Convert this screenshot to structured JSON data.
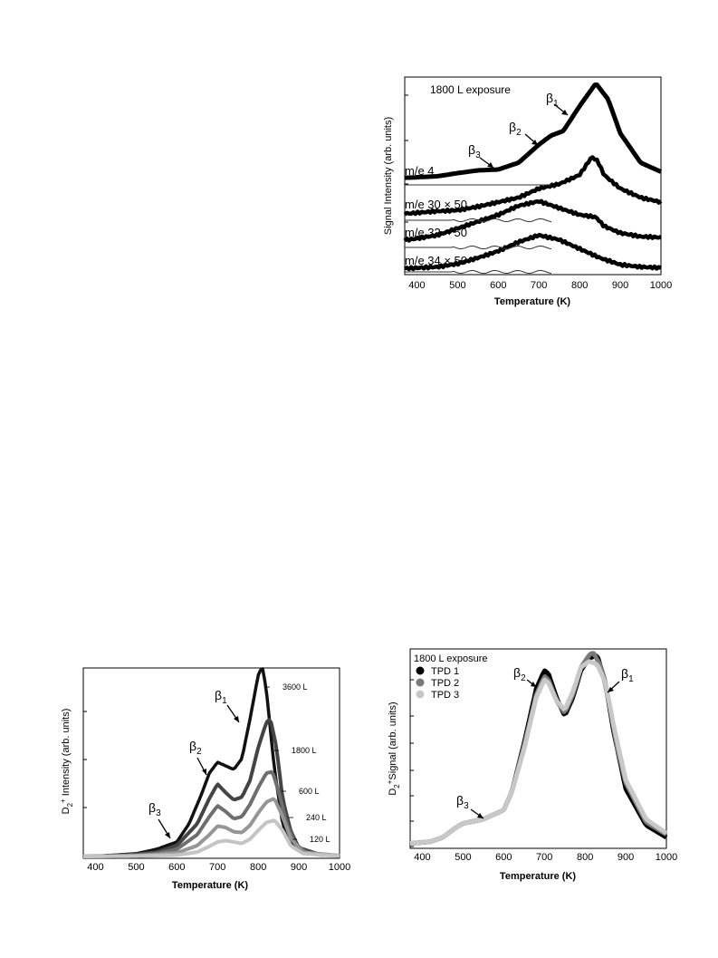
{
  "chart_data": [
    {
      "type": "line",
      "title": "1800 L exposure",
      "xlabel": "Temperature (K)",
      "ylabel": "Signal Intensity (arb. units)",
      "xlim": [
        370,
        1000
      ],
      "x_ticks": [
        "400",
        "500",
        "600",
        "700",
        "800",
        "900",
        "1000"
      ],
      "series": [
        {
          "name": "m/e 4",
          "x": [
            380,
            450,
            500,
            550,
            600,
            650,
            700,
            730,
            760,
            800,
            840,
            870,
            900,
            950,
            1000
          ],
          "values": [
            0.02,
            0.05,
            0.12,
            0.18,
            0.2,
            0.35,
            0.75,
            0.95,
            1.05,
            1.6,
            2.1,
            1.75,
            1.0,
            0.35,
            0.15
          ]
        },
        {
          "name": "m/e 30 × 50",
          "x": [
            380,
            450,
            500,
            550,
            600,
            650,
            700,
            750,
            800,
            830,
            845,
            860,
            900,
            950,
            1000
          ],
          "values": [
            0.05,
            0.1,
            0.12,
            0.2,
            0.3,
            0.4,
            0.6,
            0.7,
            0.9,
            1.3,
            1.2,
            0.9,
            0.6,
            0.4,
            0.3
          ]
        },
        {
          "name": "m/e 32 × 50",
          "x": [
            380,
            450,
            500,
            550,
            600,
            650,
            700,
            750,
            800,
            840,
            860,
            900,
            950,
            1000
          ],
          "values": [
            0.05,
            0.15,
            0.3,
            0.45,
            0.6,
            0.8,
            0.9,
            0.75,
            0.6,
            0.55,
            0.35,
            0.2,
            0.12,
            0.1
          ]
        },
        {
          "name": "m/e 34 × 50",
          "x": [
            380,
            450,
            500,
            550,
            600,
            650,
            700,
            750,
            800,
            850,
            900,
            950,
            1000
          ],
          "values": [
            0.02,
            0.05,
            0.12,
            0.25,
            0.4,
            0.6,
            0.75,
            0.65,
            0.45,
            0.25,
            0.1,
            0.05,
            0.03
          ]
        }
      ],
      "annotations": [
        {
          "label": "β",
          "sub": "1",
          "x": 840
        },
        {
          "label": "β",
          "sub": "2",
          "x": 725
        },
        {
          "label": "β",
          "sub": "3",
          "x": 530
        }
      ]
    },
    {
      "type": "line",
      "xlabel": "Temperature (K)",
      "ylabel_parts": [
        "D",
        "2",
        "+",
        " Intensity (arb. units)"
      ],
      "xlim": [
        370,
        1000
      ],
      "x_ticks": [
        "400",
        "500",
        "600",
        "700",
        "800",
        "900",
        "1000"
      ],
      "series": [
        {
          "name": "3600 L",
          "x": [
            370,
            450,
            500,
            550,
            600,
            630,
            660,
            680,
            700,
            720,
            740,
            760,
            780,
            800,
            810,
            820,
            840,
            860,
            880,
            900,
            950,
            1000
          ],
          "values": [
            0,
            0.02,
            0.04,
            0.1,
            0.2,
            0.45,
            0.85,
            1.15,
            1.3,
            1.25,
            1.2,
            1.35,
            1.9,
            2.5,
            2.62,
            2.3,
            1.2,
            0.45,
            0.18,
            0.08,
            0.02,
            0.01
          ]
        },
        {
          "name": "1800 L",
          "x": [
            370,
            450,
            500,
            550,
            600,
            650,
            680,
            700,
            720,
            740,
            760,
            780,
            800,
            820,
            830,
            845,
            860,
            880,
            900,
            950,
            1000
          ],
          "values": [
            0,
            0.01,
            0.03,
            0.06,
            0.15,
            0.45,
            0.8,
            1.0,
            0.88,
            0.78,
            0.82,
            1.05,
            1.5,
            1.85,
            1.9,
            1.5,
            0.8,
            0.35,
            0.12,
            0.03,
            0.01
          ]
        },
        {
          "name": "600 L",
          "x": [
            370,
            450,
            500,
            550,
            600,
            650,
            680,
            700,
            720,
            740,
            760,
            780,
            800,
            820,
            835,
            850,
            870,
            890,
            920,
            1000
          ],
          "values": [
            0,
            0.01,
            0.02,
            0.04,
            0.1,
            0.3,
            0.55,
            0.7,
            0.62,
            0.52,
            0.55,
            0.72,
            0.95,
            1.15,
            1.17,
            0.9,
            0.45,
            0.18,
            0.05,
            0.01
          ]
        },
        {
          "name": "240 L",
          "x": [
            370,
            500,
            600,
            650,
            680,
            700,
            720,
            740,
            760,
            780,
            800,
            820,
            840,
            860,
            880,
            910,
            1000
          ],
          "values": [
            0,
            0.01,
            0.05,
            0.15,
            0.3,
            0.42,
            0.4,
            0.34,
            0.33,
            0.43,
            0.6,
            0.75,
            0.8,
            0.55,
            0.25,
            0.06,
            0.01
          ]
        },
        {
          "name": "120 L",
          "x": [
            370,
            500,
            600,
            650,
            680,
            700,
            720,
            740,
            760,
            780,
            800,
            820,
            840,
            860,
            880,
            910,
            1000
          ],
          "values": [
            0,
            0.005,
            0.02,
            0.06,
            0.14,
            0.2,
            0.22,
            0.2,
            0.18,
            0.24,
            0.36,
            0.47,
            0.5,
            0.36,
            0.15,
            0.04,
            0.005
          ]
        }
      ],
      "annotations": [
        {
          "label": "β",
          "sub": "1",
          "x": 780
        },
        {
          "label": "β",
          "sub": "2",
          "x": 680
        },
        {
          "label": "β",
          "sub": "3",
          "x": 590
        }
      ]
    },
    {
      "type": "line",
      "title": "1800 L exposure",
      "xlabel": "Temperature (K)",
      "ylabel_parts": [
        "D",
        "2",
        "+",
        "Signal (arb. units)"
      ],
      "xlim": [
        370,
        1000
      ],
      "x_ticks": [
        "400",
        "500",
        "600",
        "700",
        "800",
        "900",
        "1000"
      ],
      "series": [
        {
          "name": "TPD 1",
          "x": [
            370,
            420,
            450,
            480,
            500,
            550,
            600,
            620,
            650,
            680,
            700,
            710,
            730,
            750,
            770,
            790,
            810,
            830,
            850,
            870,
            900,
            950,
            1000
          ],
          "values": [
            0.05,
            0.08,
            0.15,
            0.3,
            0.38,
            0.45,
            0.6,
            0.9,
            1.7,
            2.6,
            2.9,
            2.85,
            2.45,
            2.15,
            2.45,
            2.9,
            3.1,
            3.15,
            2.7,
            1.9,
            0.95,
            0.35,
            0.15
          ]
        },
        {
          "name": "TPD 2",
          "x": [
            370,
            420,
            450,
            480,
            500,
            550,
            600,
            620,
            650,
            680,
            700,
            710,
            730,
            750,
            770,
            790,
            810,
            820,
            840,
            860,
            880,
            900,
            950,
            1000
          ],
          "values": [
            0.05,
            0.08,
            0.15,
            0.3,
            0.38,
            0.45,
            0.6,
            0.9,
            1.65,
            2.5,
            2.8,
            2.75,
            2.4,
            2.2,
            2.5,
            2.95,
            3.15,
            3.2,
            2.95,
            2.35,
            1.6,
            1.05,
            0.4,
            0.2
          ]
        },
        {
          "name": "TPD 3",
          "x": [
            370,
            420,
            450,
            480,
            500,
            550,
            600,
            620,
            650,
            680,
            700,
            710,
            730,
            750,
            770,
            790,
            810,
            830,
            850,
            870,
            900,
            950,
            1000
          ],
          "values": [
            0.05,
            0.08,
            0.15,
            0.3,
            0.38,
            0.45,
            0.6,
            0.9,
            1.6,
            2.45,
            2.75,
            2.7,
            2.4,
            2.25,
            2.55,
            2.95,
            3.05,
            3.0,
            2.7,
            2.0,
            1.1,
            0.45,
            0.22
          ]
        }
      ],
      "legend": {
        "placement": "top-left",
        "colors": [
          "#000000",
          "#7a7a7a",
          "#c8c8c8"
        ]
      },
      "annotations": [
        {
          "label": "β",
          "sub": "1",
          "x": 855
        },
        {
          "label": "β",
          "sub": "2",
          "x": 690
        },
        {
          "label": "β",
          "sub": "3",
          "x": 545
        }
      ]
    }
  ]
}
